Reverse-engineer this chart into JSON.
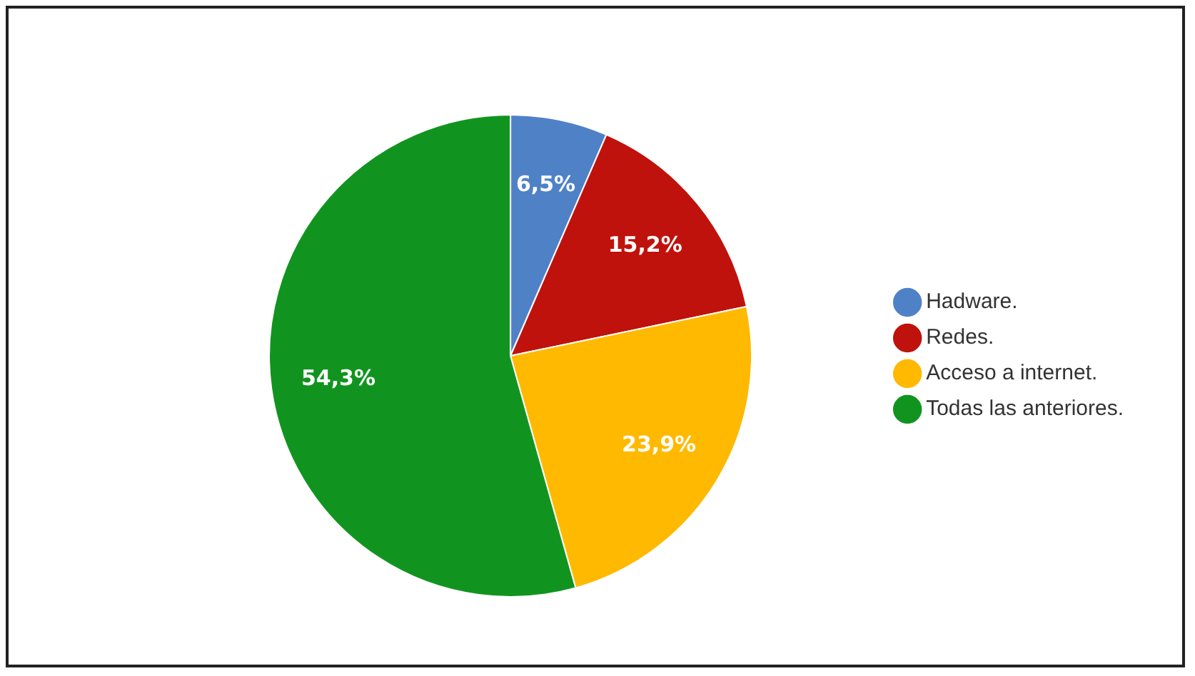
{
  "chart_data": {
    "type": "pie",
    "categories": [
      "Hadware.",
      "Redes.",
      "Acceso a internet.",
      "Todas las anteriores."
    ],
    "values": [
      6.5,
      15.2,
      23.9,
      54.3
    ],
    "colors": [
      "#4f81c7",
      "#c0120c",
      "#ffb900",
      "#11941f"
    ],
    "value_labels": [
      "6,5%",
      "15,2%",
      "23,9%",
      "54,3%"
    ],
    "legend": "right"
  }
}
